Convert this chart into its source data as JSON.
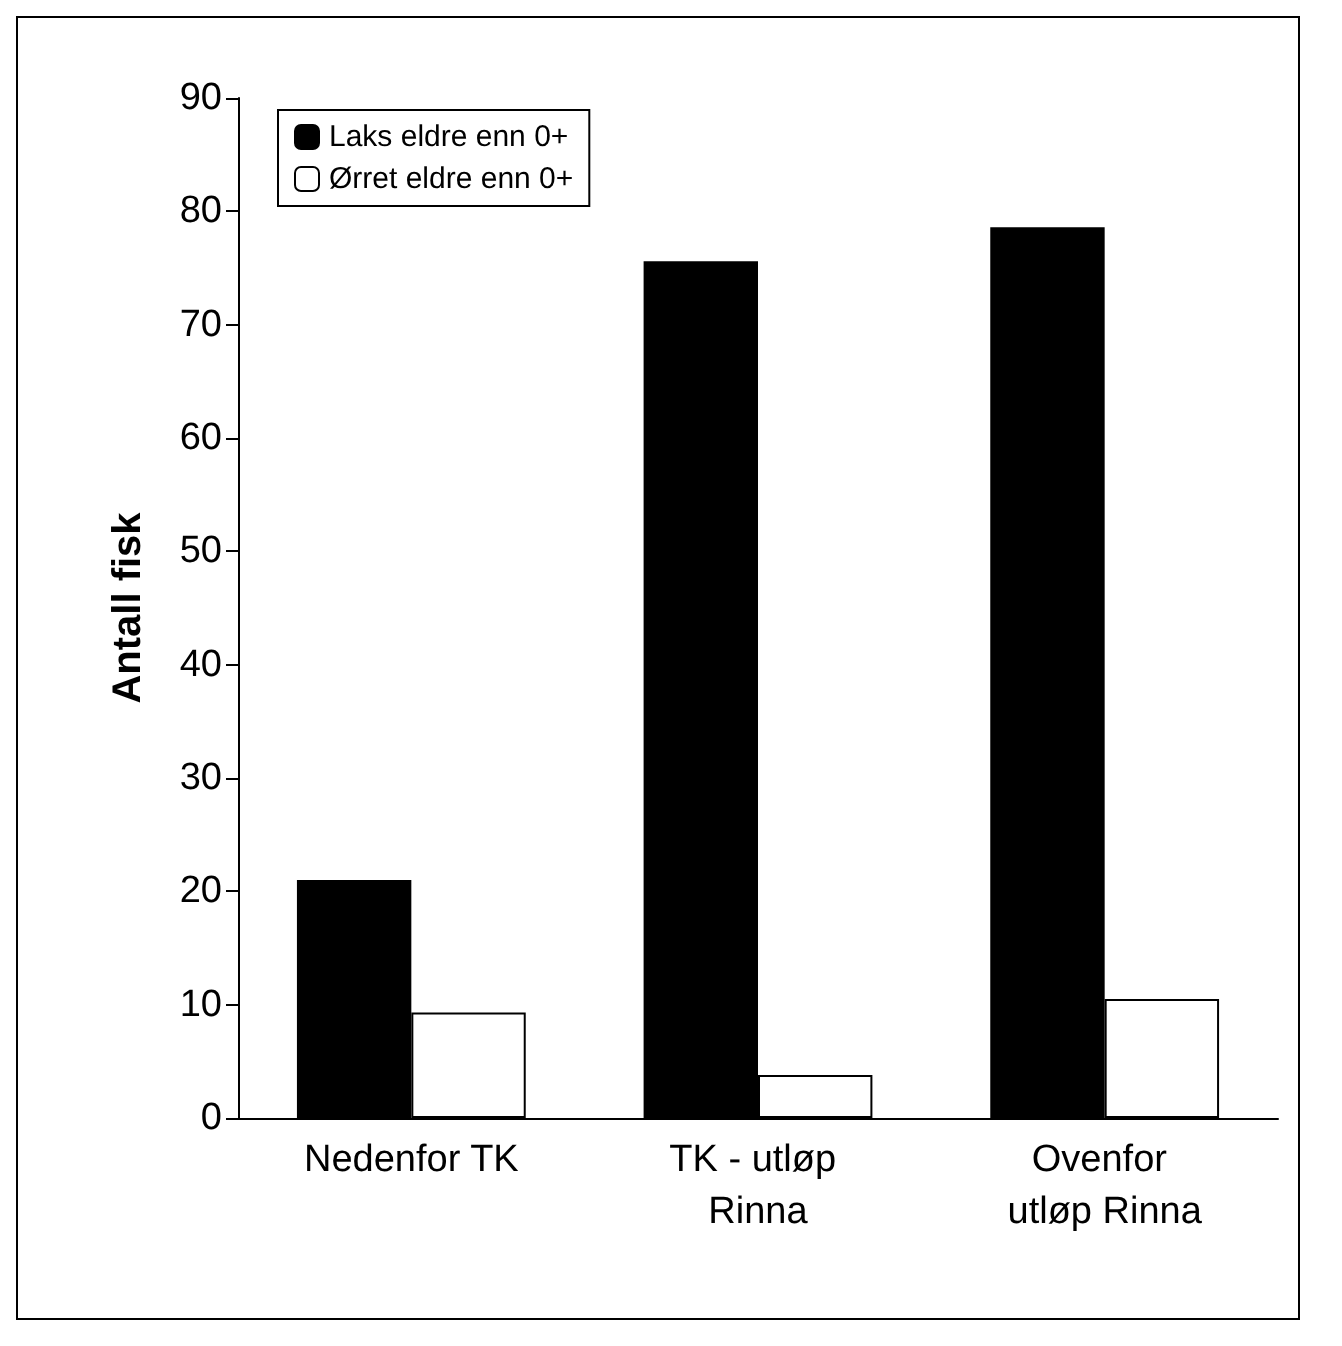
{
  "chart_data": {
    "type": "bar",
    "ylabel": "Antall fisk",
    "categories": [
      "Nedenfor TK",
      "TK - utløp Rinna",
      "Ovenfor utløp Rinna"
    ],
    "series": [
      {
        "name": "Laks eldre enn 0+",
        "color": "#000000",
        "values": [
          21,
          75.6,
          78.6
        ]
      },
      {
        "name": "Ørret eldre enn 0+",
        "color": "#ffffff",
        "values": [
          9.3,
          3.8,
          10.5
        ]
      }
    ],
    "ylim": [
      0,
      90
    ],
    "yticks": [
      0,
      10,
      20,
      30,
      40,
      50,
      60,
      70,
      80,
      90
    ],
    "grid": false,
    "legend": "top left"
  }
}
